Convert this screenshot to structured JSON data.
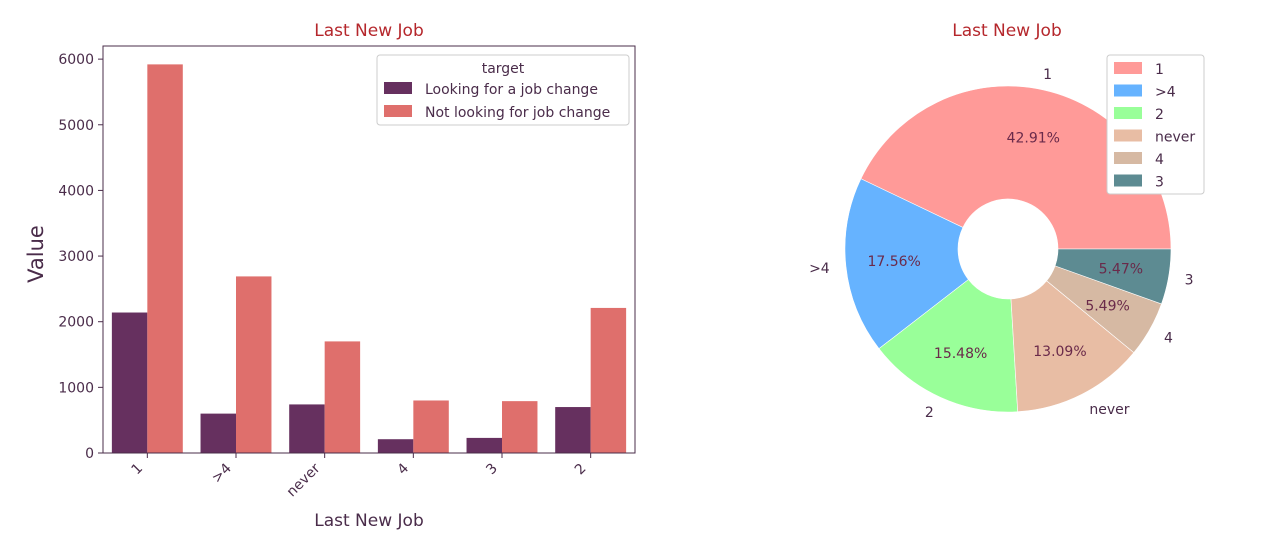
{
  "chart_data": [
    {
      "type": "bar",
      "title": "Last New Job",
      "xlabel": "Last New Job",
      "ylabel": "Value",
      "categories": [
        "1",
        ">4",
        "never",
        "4",
        "3",
        "2"
      ],
      "ylim": [
        0,
        6200
      ],
      "yticks": [
        0,
        1000,
        2000,
        3000,
        4000,
        5000,
        6000
      ],
      "grid": false,
      "legend": {
        "title": "target",
        "position": "top-right"
      },
      "series": [
        {
          "name": "Looking for a job change",
          "color": "#66305f",
          "values": [
            2140,
            600,
            740,
            210,
            230,
            700
          ]
        },
        {
          "name": "Not looking for job change",
          "color": "#df6f6c",
          "values": [
            5920,
            2690,
            1700,
            800,
            790,
            2210
          ]
        }
      ]
    },
    {
      "type": "pie",
      "title": "Last New Job",
      "donut": true,
      "legend": {
        "position": "top-right"
      },
      "labels": [
        "1",
        ">4",
        "2",
        "never",
        "4",
        "3"
      ],
      "values": [
        42.91,
        17.56,
        15.48,
        13.09,
        5.49,
        5.47
      ],
      "pct_labels": [
        "42.91%",
        "17.56%",
        "15.48%",
        "13.09%",
        "5.49%",
        "5.47%"
      ],
      "colors": [
        "#ff9a98",
        "#66b3ff",
        "#99ff99",
        "#e8bda4",
        "#d6b9a3",
        "#5d8b92"
      ]
    }
  ]
}
